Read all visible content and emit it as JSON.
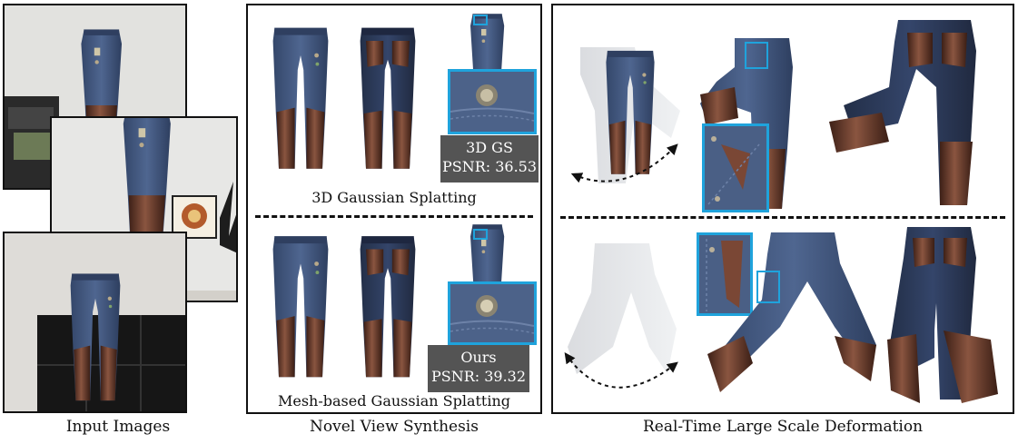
{
  "captions": {
    "input": "Input Images",
    "nvs": "Novel View Synthesis",
    "deform": "Real-Time Large Scale Deformation"
  },
  "nvs": {
    "top": {
      "method": "3D Gaussian Splatting",
      "tag": "3D GS",
      "psnr": "PSNR: 36.53"
    },
    "bottom": {
      "method": "Mesh-based Gaussian Splatting",
      "tag": "Ours",
      "psnr": "PSNR: 39.32"
    }
  },
  "colors": {
    "denim": "#3f5479",
    "denim_dark": "#2b3a58",
    "leather": "#5a3326",
    "leather_light": "#7a4735",
    "zoom_border": "#1fa3dc",
    "wall": "#e3e3e1"
  }
}
